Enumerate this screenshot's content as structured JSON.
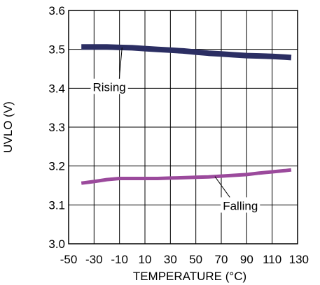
{
  "chart_data": {
    "type": "line",
    "title": "",
    "xlabel": "TEMPERATURE (°C)",
    "ylabel": "UVLO (V)",
    "xlim": [
      -50,
      130
    ],
    "ylim": [
      3.0,
      3.6
    ],
    "x_ticks": [
      -50,
      -30,
      -10,
      10,
      30,
      50,
      70,
      90,
      110,
      130
    ],
    "y_ticks": [
      3.6,
      3.5,
      3.4,
      3.3,
      3.2,
      3.1,
      3.0
    ],
    "x_tick_labels": [
      "-50",
      "-30",
      "-10",
      "10",
      "30",
      "50",
      "70",
      "90",
      "110",
      "130"
    ],
    "y_tick_labels": [
      "3.6",
      "3.5",
      "3.4",
      "3.3",
      "3.2",
      "3.1",
      "3.0"
    ],
    "grid": true,
    "series": [
      {
        "name": "Rising",
        "color": "#2b2e63",
        "x": [
          -40,
          -30,
          -20,
          -10,
          0,
          10,
          20,
          30,
          40,
          50,
          60,
          70,
          80,
          90,
          100,
          110,
          120,
          125
        ],
        "values": [
          3.506,
          3.506,
          3.506,
          3.505,
          3.504,
          3.502,
          3.5,
          3.498,
          3.496,
          3.493,
          3.49,
          3.488,
          3.486,
          3.484,
          3.483,
          3.482,
          3.48,
          3.479
        ]
      },
      {
        "name": "Falling",
        "color": "#9b4a9c",
        "x": [
          -40,
          -30,
          -20,
          -10,
          0,
          10,
          20,
          30,
          40,
          50,
          60,
          70,
          80,
          90,
          100,
          110,
          120,
          125
        ],
        "values": [
          3.156,
          3.16,
          3.165,
          3.168,
          3.168,
          3.168,
          3.168,
          3.169,
          3.17,
          3.171,
          3.172,
          3.174,
          3.176,
          3.178,
          3.182,
          3.185,
          3.188,
          3.19
        ]
      }
    ],
    "annotations": [
      {
        "text": "Rising",
        "series": 0,
        "anchor_x": -8,
        "label_x": -18,
        "label_y": 3.403
      },
      {
        "text": "Falling",
        "series": 1,
        "anchor_x": 65,
        "label_x": 85,
        "label_y": 3.098
      }
    ]
  }
}
